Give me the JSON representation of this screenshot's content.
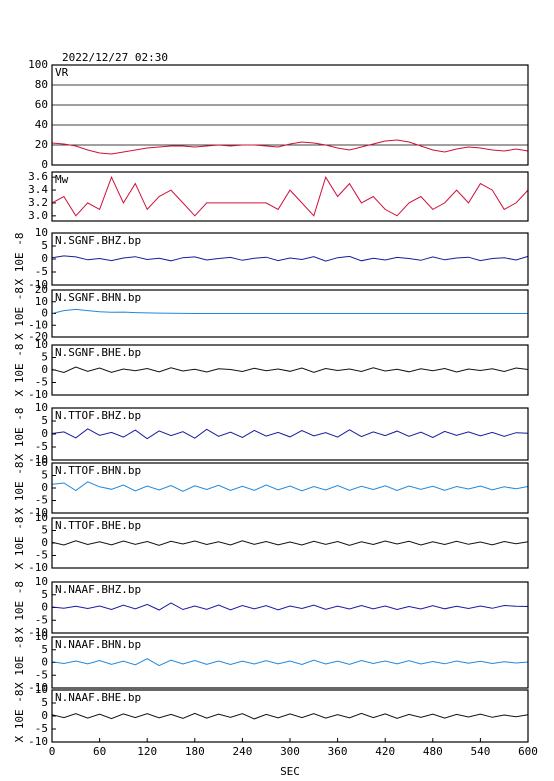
{
  "title": "2022/12/27 02:30",
  "x_axis": {
    "label": "SEC",
    "xlim": [
      0,
      600
    ],
    "xticks": [
      0,
      60,
      120,
      180,
      240,
      300,
      360,
      420,
      480,
      540,
      600
    ],
    "x": [
      0,
      15,
      30,
      45,
      60,
      75,
      90,
      105,
      120,
      135,
      150,
      165,
      180,
      195,
      210,
      225,
      240,
      255,
      270,
      285,
      300,
      315,
      330,
      345,
      360,
      375,
      390,
      405,
      420,
      435,
      450,
      465,
      480,
      495,
      510,
      525,
      540,
      555,
      570,
      585,
      600
    ]
  },
  "chart_data": [
    {
      "type": "line",
      "label": "VR",
      "color": "#d0103a",
      "ylim": [
        0,
        100
      ],
      "yticks": [
        0,
        20,
        40,
        60,
        80,
        100
      ],
      "grid": true,
      "values": [
        22,
        21,
        19,
        15,
        12,
        11,
        13,
        15,
        17,
        18,
        19,
        19,
        18,
        19,
        20,
        19,
        20,
        20,
        19,
        18,
        21,
        23,
        22,
        20,
        17,
        15,
        18,
        21,
        24,
        25,
        23,
        19,
        15,
        13,
        16,
        18,
        17,
        15,
        14,
        16,
        14
      ]
    },
    {
      "type": "line",
      "label": "Mw",
      "color": "#d0103a",
      "ylim": [
        2.92,
        3.68
      ],
      "yticks": [
        {
          "value": 3,
          "label": "3.0"
        },
        {
          "value": 3.2,
          "label": "3.2"
        },
        {
          "value": 3.4,
          "label": "3.4"
        },
        {
          "value": 3.6,
          "label": "3.6"
        }
      ],
      "grid": false,
      "values": [
        3.2,
        3.3,
        3.0,
        3.2,
        3.1,
        3.6,
        3.2,
        3.5,
        3.1,
        3.3,
        3.4,
        3.2,
        3.0,
        3.2,
        3.2,
        3.2,
        3.2,
        3.2,
        3.2,
        3.1,
        3.4,
        3.2,
        3.0,
        3.6,
        3.3,
        3.5,
        3.2,
        3.3,
        3.1,
        3.0,
        3.2,
        3.3,
        3.1,
        3.2,
        3.4,
        3.2,
        3.5,
        3.4,
        3.1,
        3.2,
        3.4
      ]
    },
    {
      "type": "line",
      "label": "N.SGNF.BHZ.bp",
      "ylabel": "X 10E -8",
      "color": "#1a1aa0",
      "ylim": [
        -10,
        10
      ],
      "yticks": [
        -10,
        -5,
        0,
        5,
        10
      ],
      "grid": false,
      "values": [
        0.5,
        1.2,
        0.8,
        -0.3,
        0.2,
        -0.6,
        0.4,
        0.9,
        -0.2,
        0.3,
        -0.7,
        0.5,
        0.8,
        -0.4,
        0.2,
        0.6,
        -0.5,
        0.3,
        0.7,
        -0.6,
        0.4,
        -0.2,
        0.9,
        -0.8,
        0.5,
        1.0,
        -0.7,
        0.3,
        -0.4,
        0.6,
        0.2,
        -0.5,
        0.8,
        -0.3,
        0.4,
        0.7,
        -0.6,
        0.2,
        0.5,
        -0.4,
        1.0
      ]
    },
    {
      "type": "line",
      "label": "N.SGNF.BHN.bp",
      "ylabel": "X 10E -8",
      "color": "#2288dd",
      "ylim": [
        -20,
        20
      ],
      "yticks": [
        -20,
        -10,
        0,
        10,
        20
      ],
      "grid": false,
      "values": [
        0,
        2.5,
        3.5,
        2.5,
        1.5,
        1,
        1.2,
        0.8,
        0.5,
        0.3,
        0.2,
        0.1,
        0,
        0,
        0,
        0,
        0,
        0,
        0,
        0,
        0,
        0,
        0,
        0,
        0,
        0,
        0,
        0,
        0,
        0,
        0,
        0,
        0,
        0,
        0,
        0,
        0,
        0,
        0,
        0,
        0
      ]
    },
    {
      "type": "line",
      "label": "N.SGNF.BHE.bp",
      "ylabel": "X 10E -8",
      "color": "#111111",
      "ylim": [
        -10,
        10
      ],
      "yticks": [
        -10,
        -5,
        0,
        5,
        10
      ],
      "grid": false,
      "values": [
        0.3,
        -1,
        1.2,
        -0.5,
        0.8,
        -0.9,
        0.4,
        -0.3,
        0.6,
        -0.7,
        0.9,
        -0.4,
        0.3,
        -0.8,
        0.5,
        0.2,
        -0.6,
        0.7,
        -0.3,
        0.4,
        -0.5,
        0.8,
        -0.9,
        0.6,
        -0.2,
        0.4,
        -0.6,
        0.9,
        -0.4,
        0.3,
        -0.7,
        0.5,
        -0.3,
        0.6,
        -0.8,
        0.4,
        -0.2,
        0.5,
        -0.6,
        0.8,
        0.2
      ]
    },
    {
      "type": "line",
      "label": "N.TTOF.BHZ.bp",
      "ylabel": "X 10E -8",
      "color": "#1a1aa0",
      "ylim": [
        -10,
        10
      ],
      "yticks": [
        -10,
        -5,
        0,
        5,
        10
      ],
      "grid": false,
      "values": [
        0.2,
        0.8,
        -1.5,
        2,
        -0.5,
        0.6,
        -1.2,
        1.5,
        -1.8,
        1.2,
        -0.6,
        0.9,
        -1.6,
        1.8,
        -0.9,
        0.7,
        -1.3,
        1.4,
        -0.8,
        0.6,
        -1.1,
        1.3,
        -0.7,
        0.5,
        -1.2,
        1.6,
        -1.0,
        0.8,
        -0.6,
        1.1,
        -0.9,
        0.7,
        -1.3,
        1.0,
        -0.5,
        0.8,
        -0.7,
        0.6,
        -0.9,
        0.5,
        0.3
      ]
    },
    {
      "type": "line",
      "label": "N.TTOF.BHN.bp",
      "ylabel": "X 10E -8",
      "color": "#2288dd",
      "ylim": [
        -10,
        10
      ],
      "yticks": [
        -10,
        -5,
        0,
        5,
        10
      ],
      "grid": false,
      "values": [
        1.5,
        2,
        -1,
        2.5,
        0.5,
        -0.5,
        1.2,
        -1.2,
        0.8,
        -0.8,
        1,
        -1.3,
        0.9,
        -0.6,
        1.1,
        -1,
        0.7,
        -0.9,
        1.2,
        -0.7,
        0.8,
        -1.1,
        0.6,
        -0.8,
        1.0,
        -0.9,
        0.7,
        -0.6,
        0.9,
        -1.0,
        0.8,
        -0.5,
        0.7,
        -0.9,
        0.6,
        -0.4,
        0.8,
        -0.7,
        0.5,
        -0.3,
        0.6
      ]
    },
    {
      "type": "line",
      "label": "N.TTOF.BHE.bp",
      "ylabel": "X 10E -8",
      "color": "#111111",
      "ylim": [
        -10,
        10
      ],
      "yticks": [
        -10,
        -5,
        0,
        5,
        10
      ],
      "grid": false,
      "values": [
        0.3,
        -0.8,
        0.9,
        -0.6,
        0.5,
        -0.7,
        0.8,
        -0.5,
        0.6,
        -0.9,
        0.7,
        -0.4,
        0.8,
        -0.6,
        0.5,
        -0.8,
        0.9,
        -0.5,
        0.6,
        -0.7,
        0.4,
        -0.8,
        0.7,
        -0.5,
        0.6,
        -0.9,
        0.5,
        -0.6,
        0.8,
        -0.4,
        0.7,
        -0.8,
        0.5,
        -0.6,
        0.7,
        -0.5,
        0.4,
        -0.7,
        0.6,
        -0.3,
        0.5
      ]
    },
    {
      "type": "line",
      "label": "N.NAAF.BHZ.bp",
      "ylabel": "X 10E -8",
      "color": "#1a1aa0",
      "ylim": [
        -10,
        10
      ],
      "yticks": [
        -10,
        -5,
        0,
        5,
        10
      ],
      "grid": false,
      "values": [
        0.2,
        -0.3,
        0.5,
        -0.4,
        0.6,
        -0.8,
        0.9,
        -0.5,
        1.2,
        -1,
        1.8,
        -0.8,
        0.6,
        -0.7,
        1.0,
        -0.9,
        0.8,
        -0.5,
        0.7,
        -0.9,
        0.6,
        -0.4,
        0.9,
        -0.7,
        0.5,
        -0.6,
        0.8,
        -0.5,
        0.6,
        -0.8,
        0.4,
        -0.6,
        0.7,
        -0.5,
        0.5,
        -0.4,
        0.6,
        -0.3,
        0.8,
        0.5,
        0.4
      ]
    },
    {
      "type": "line",
      "label": "N.NAAF.BHN.bp",
      "ylabel": "X 10E -8",
      "color": "#2288dd",
      "ylim": [
        -10,
        10
      ],
      "yticks": [
        -10,
        -5,
        0,
        5,
        10
      ],
      "grid": false,
      "values": [
        0.3,
        -0.4,
        0.6,
        -0.5,
        0.8,
        -0.7,
        0.5,
        -0.9,
        1.5,
        -1.2,
        0.9,
        -0.6,
        0.8,
        -0.7,
        0.6,
        -0.8,
        0.5,
        -0.6,
        0.7,
        -0.5,
        0.6,
        -0.8,
        0.9,
        -0.6,
        0.5,
        -0.7,
        0.8,
        -0.4,
        0.6,
        -0.5,
        0.7,
        -0.6,
        0.4,
        -0.5,
        0.6,
        -0.3,
        0.5,
        -0.4,
        0.3,
        -0.2,
        0.2
      ]
    },
    {
      "type": "line",
      "label": "N.NAAF.BHE.bp",
      "ylabel": "X 10E -8",
      "color": "#111111",
      "ylim": [
        -10,
        10
      ],
      "yticks": [
        -10,
        -5,
        0,
        5,
        10
      ],
      "grid": false,
      "values": [
        0.5,
        -0.6,
        0.9,
        -0.8,
        0.7,
        -1,
        0.8,
        -0.6,
        0.9,
        -0.7,
        0.6,
        -0.9,
        1.0,
        -0.8,
        0.7,
        -0.5,
        0.9,
        -1.1,
        0.6,
        -0.7,
        0.8,
        -0.6,
        0.9,
        -0.8,
        0.5,
        -0.7,
        1.0,
        -0.6,
        0.8,
        -0.9,
        0.6,
        -0.5,
        0.7,
        -0.8,
        0.6,
        -0.4,
        0.7,
        -0.5,
        0.4,
        -0.3,
        0.5
      ]
    }
  ]
}
